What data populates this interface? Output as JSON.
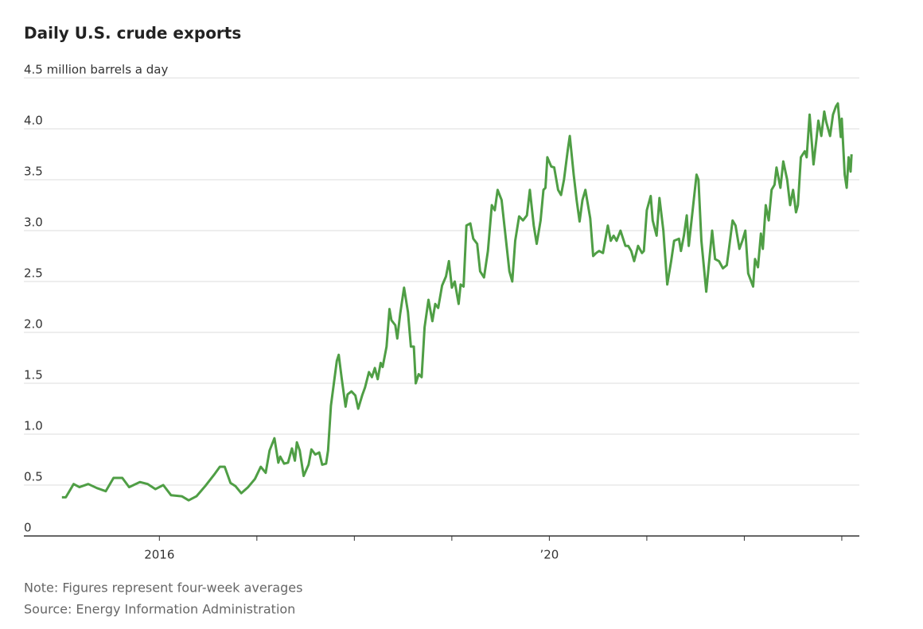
{
  "chart_data": {
    "type": "line",
    "title": "Daily U.S. crude exports",
    "note": "Note: Figures represent four-week averages",
    "source": "Source: Energy Information Administration",
    "color": "#4f9e45",
    "grid": true,
    "xlim": [
      2014.61,
      2023.18
    ],
    "xticks": [
      2016,
      {
        "value": 2020,
        "label": "’20"
      }
    ],
    "xminor_ticks": [
      2017,
      2018,
      2019,
      2021,
      2022,
      2023
    ],
    "ylim": [
      0,
      4.5
    ],
    "yticks": [
      0,
      0.5,
      {
        "value": 1,
        "label": "1.0"
      },
      1.5,
      {
        "value": 2,
        "label": "2.0"
      },
      2.5,
      {
        "value": 3,
        "label": "3.0"
      },
      3.5,
      {
        "value": 4,
        "label": "4.0"
      },
      {
        "value": 4.5,
        "label": "4.5 million barrels a day"
      }
    ],
    "x": [
      2015.0,
      2015.04,
      2015.12,
      2015.18,
      2015.27,
      2015.36,
      2015.45,
      2015.53,
      2015.62,
      2015.69,
      2015.8,
      2015.88,
      2015.96,
      2016.04,
      2016.12,
      2016.23,
      2016.3,
      2016.38,
      2016.47,
      2016.56,
      2016.62,
      2016.67,
      2016.73,
      2016.78,
      2016.84,
      2016.91,
      2016.98,
      2017.04,
      2017.09,
      2017.13,
      2017.18,
      2017.22,
      2017.24,
      2017.28,
      2017.32,
      2017.36,
      2017.39,
      2017.41,
      2017.44,
      2017.48,
      2017.53,
      2017.56,
      2017.6,
      2017.64,
      2017.67,
      2017.71,
      2017.73,
      2017.76,
      2017.79,
      2017.82,
      2017.84,
      2017.87,
      2017.91,
      2017.93,
      2017.97,
      2018.01,
      2018.04,
      2018.08,
      2018.11,
      2018.15,
      2018.18,
      2018.21,
      2018.24,
      2018.27,
      2018.29,
      2018.33,
      2018.36,
      2018.38,
      2018.42,
      2018.44,
      2018.47,
      2018.51,
      2018.55,
      2018.58,
      2018.61,
      2018.63,
      2018.66,
      2018.69,
      2018.72,
      2018.76,
      2018.8,
      2018.83,
      2018.86,
      2018.9,
      2018.94,
      2018.97,
      2019.0,
      2019.03,
      2019.07,
      2019.09,
      2019.12,
      2019.15,
      2019.19,
      2019.22,
      2019.26,
      2019.29,
      2019.33,
      2019.37,
      2019.41,
      2019.44,
      2019.47,
      2019.51,
      2019.55,
      2019.59,
      2019.62,
      2019.65,
      2019.69,
      2019.73,
      2019.77,
      2019.8,
      2019.84,
      2019.87,
      2019.91,
      2019.94,
      2019.96,
      2019.98,
      2020.02,
      2020.05,
      2020.09,
      2020.12,
      2020.15,
      2020.19,
      2020.21,
      2020.25,
      2020.28,
      2020.31,
      2020.34,
      2020.37,
      2020.42,
      2020.45,
      2020.48,
      2020.51,
      2020.55,
      2020.6,
      2020.63,
      2020.66,
      2020.69,
      2020.73,
      2020.78,
      2020.81,
      2020.84,
      2020.87,
      2020.91,
      2020.95,
      2020.97,
      2021.0,
      2021.04,
      2021.06,
      2021.1,
      2021.13,
      2021.17,
      2021.21,
      2021.25,
      2021.28,
      2021.33,
      2021.35,
      2021.38,
      2021.41,
      2021.43,
      2021.47,
      2021.51,
      2021.53,
      2021.56,
      2021.61,
      2021.64,
      2021.67,
      2021.7,
      2021.74,
      2021.78,
      2021.82,
      2021.84,
      2021.88,
      2021.91,
      2021.95,
      2021.98,
      2022.01,
      2022.04,
      2022.09,
      2022.11,
      2022.14,
      2022.17,
      2022.19,
      2022.22,
      2022.25,
      2022.28,
      2022.31,
      2022.33,
      2022.37,
      2022.4,
      2022.44,
      2022.47,
      2022.5,
      2022.53,
      2022.55,
      2022.58,
      2022.62,
      2022.64,
      2022.67,
      2022.71,
      2022.74,
      2022.76,
      2022.79,
      2022.82,
      2022.84,
      2022.88,
      2022.91,
      2022.94,
      2022.96,
      2022.99,
      2023.0,
      2023.03,
      2023.05,
      2023.07,
      2023.09,
      2023.1
    ],
    "values": [
      0.38,
      0.38,
      0.51,
      0.48,
      0.51,
      0.47,
      0.44,
      0.57,
      0.57,
      0.48,
      0.53,
      0.51,
      0.46,
      0.5,
      0.4,
      0.39,
      0.35,
      0.39,
      0.49,
      0.6,
      0.68,
      0.68,
      0.52,
      0.49,
      0.42,
      0.48,
      0.56,
      0.68,
      0.62,
      0.84,
      0.96,
      0.72,
      0.78,
      0.71,
      0.72,
      0.86,
      0.74,
      0.92,
      0.84,
      0.59,
      0.7,
      0.85,
      0.8,
      0.82,
      0.7,
      0.71,
      0.84,
      1.28,
      1.5,
      1.72,
      1.78,
      1.55,
      1.27,
      1.39,
      1.42,
      1.38,
      1.25,
      1.38,
      1.46,
      1.61,
      1.56,
      1.65,
      1.54,
      1.7,
      1.66,
      1.86,
      2.23,
      2.12,
      2.07,
      1.94,
      2.18,
      2.44,
      2.2,
      1.86,
      1.86,
      1.5,
      1.59,
      1.56,
      2.05,
      2.32,
      2.11,
      2.28,
      2.24,
      2.46,
      2.55,
      2.7,
      2.44,
      2.5,
      2.28,
      2.47,
      2.45,
      3.05,
      3.07,
      2.92,
      2.87,
      2.6,
      2.54,
      2.8,
      3.25,
      3.2,
      3.4,
      3.3,
      2.95,
      2.6,
      2.5,
      2.9,
      3.14,
      3.1,
      3.15,
      3.4,
      3.05,
      2.87,
      3.1,
      3.4,
      3.42,
      3.72,
      3.63,
      3.62,
      3.4,
      3.35,
      3.5,
      3.8,
      3.93,
      3.55,
      3.3,
      3.09,
      3.3,
      3.4,
      3.12,
      2.75,
      2.78,
      2.8,
      2.78,
      3.05,
      2.9,
      2.95,
      2.9,
      3.0,
      2.85,
      2.85,
      2.8,
      2.7,
      2.85,
      2.78,
      2.8,
      3.2,
      3.34,
      3.1,
      2.95,
      3.32,
      3.0,
      2.47,
      2.7,
      2.9,
      2.92,
      2.8,
      2.95,
      3.15,
      2.85,
      3.2,
      3.55,
      3.5,
      2.9,
      2.4,
      2.7,
      3.0,
      2.72,
      2.7,
      2.63,
      2.66,
      2.8,
      3.1,
      3.05,
      2.82,
      2.9,
      3.0,
      2.58,
      2.45,
      2.72,
      2.64,
      2.97,
      2.82,
      3.25,
      3.1,
      3.4,
      3.45,
      3.62,
      3.42,
      3.68,
      3.5,
      3.25,
      3.4,
      3.18,
      3.25,
      3.72,
      3.78,
      3.72,
      4.14,
      3.65,
      3.9,
      4.08,
      3.93,
      4.17,
      4.07,
      3.93,
      4.14,
      4.22,
      4.25,
      3.92,
      4.1,
      3.55,
      3.42,
      3.72,
      3.58,
      3.75
    ]
  }
}
